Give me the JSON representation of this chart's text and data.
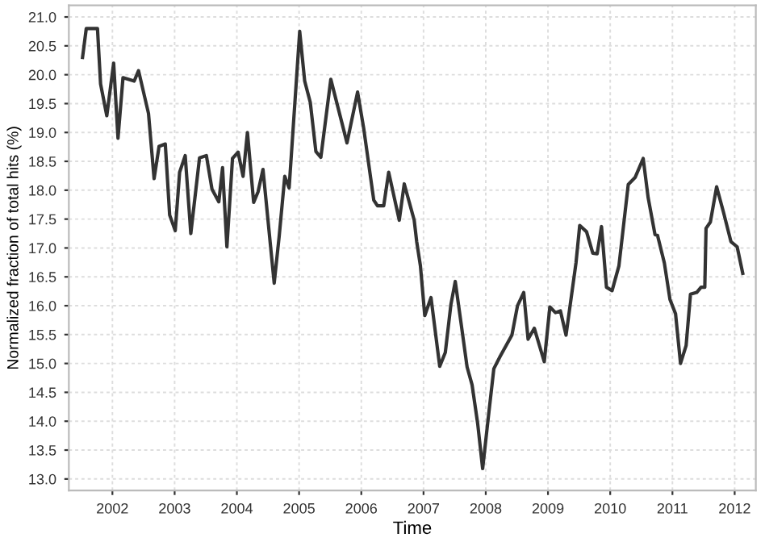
{
  "chart_data": {
    "type": "line",
    "xlabel": "Time",
    "ylabel": "Normalized fraction of total hits (%)",
    "xlim": [
      2001.3,
      2012.34
    ],
    "ylim": [
      12.8,
      21.2
    ],
    "xticks": [
      2002,
      2003,
      2004,
      2005,
      2006,
      2007,
      2008,
      2009,
      2010,
      2011,
      2012
    ],
    "yticks": [
      {
        "value": 13,
        "label": "13.0"
      },
      {
        "value": 13.5,
        "label": "13.5"
      },
      {
        "value": 14,
        "label": "14.0"
      },
      {
        "value": 14.5,
        "label": "14.5"
      },
      {
        "value": 15,
        "label": "15.0"
      },
      {
        "value": 15.5,
        "label": "15.5"
      },
      {
        "value": 16,
        "label": "16.0"
      },
      {
        "value": 16.5,
        "label": "16.5"
      },
      {
        "value": 17,
        "label": "17.0"
      },
      {
        "value": 17.5,
        "label": "17.5"
      },
      {
        "value": 18,
        "label": "18.0"
      },
      {
        "value": 18.5,
        "label": "18.5"
      },
      {
        "value": 19,
        "label": "19.0"
      },
      {
        "value": 19.5,
        "label": "19.5"
      },
      {
        "value": 20,
        "label": "20.0"
      },
      {
        "value": 20.5,
        "label": "20.5"
      },
      {
        "value": 21,
        "label": "21.0"
      }
    ],
    "grid": true,
    "line_style": "solid",
    "marker": "none",
    "series": [
      {
        "color": "#333333",
        "x": [
          2001.52,
          2001.58,
          2001.76,
          2001.81,
          2001.91,
          2002.02,
          2002.09,
          2002.17,
          2002.35,
          2002.42,
          2002.58,
          2002.67,
          2002.75,
          2002.85,
          2002.92,
          2003.01,
          2003.08,
          2003.17,
          2003.26,
          2003.4,
          2003.51,
          2003.6,
          2003.71,
          2003.77,
          2003.84,
          2003.93,
          2004.02,
          2004.1,
          2004.17,
          2004.27,
          2004.34,
          2004.42,
          2004.6,
          2004.68,
          2004.77,
          2004.84,
          2005.01,
          2005.09,
          2005.18,
          2005.27,
          2005.35,
          2005.51,
          2005.77,
          2005.94,
          2006.04,
          2006.2,
          2006.26,
          2006.36,
          2006.44,
          2006.61,
          2006.69,
          2006.85,
          2006.89,
          2006.95,
          2007.02,
          2007.12,
          2007.26,
          2007.35,
          2007.44,
          2007.51,
          2007.6,
          2007.7,
          2007.78,
          2007.87,
          2007.95,
          2008.03,
          2008.13,
          2008.23,
          2008.42,
          2008.51,
          2008.61,
          2008.68,
          2008.78,
          2008.94,
          2009.03,
          2009.12,
          2009.2,
          2009.29,
          2009.45,
          2009.51,
          2009.62,
          2009.72,
          2009.79,
          2009.86,
          2009.94,
          2010.03,
          2010.14,
          2010.29,
          2010.4,
          2010.53,
          2010.61,
          2010.72,
          2010.76,
          2010.87,
          2010.96,
          2011.05,
          2011.13,
          2011.22,
          2011.29,
          2011.39,
          2011.46,
          2011.52,
          2011.54,
          2011.61,
          2011.71,
          2011.82,
          2011.94,
          2012.04,
          2012.13
        ],
        "values": [
          20.3,
          20.8,
          20.8,
          19.84,
          19.29,
          20.2,
          18.9,
          19.95,
          19.89,
          20.07,
          19.33,
          18.2,
          18.76,
          18.8,
          17.57,
          17.3,
          18.31,
          18.6,
          17.25,
          18.56,
          18.6,
          18.02,
          17.8,
          18.39,
          17.02,
          18.55,
          18.66,
          18.24,
          19.0,
          17.79,
          17.97,
          18.36,
          16.39,
          17.2,
          18.24,
          18.04,
          20.75,
          19.89,
          19.52,
          18.67,
          18.57,
          19.92,
          18.82,
          19.7,
          19.06,
          17.83,
          17.73,
          17.73,
          18.31,
          17.48,
          18.11,
          17.48,
          17.11,
          16.69,
          15.83,
          16.14,
          14.95,
          15.19,
          16.02,
          16.42,
          15.72,
          14.94,
          14.63,
          13.96,
          13.18,
          13.96,
          14.91,
          15.12,
          15.49,
          16.0,
          16.23,
          15.42,
          15.61,
          15.03,
          15.98,
          15.88,
          15.91,
          15.49,
          16.74,
          17.39,
          17.28,
          16.91,
          16.9,
          17.37,
          16.32,
          16.26,
          16.69,
          18.1,
          18.22,
          18.55,
          17.87,
          17.23,
          17.22,
          16.74,
          16.11,
          15.86,
          15.0,
          15.31,
          16.2,
          16.23,
          16.32,
          16.32,
          17.34,
          17.45,
          18.06,
          17.62,
          17.11,
          17.02,
          16.56
        ]
      }
    ]
  }
}
